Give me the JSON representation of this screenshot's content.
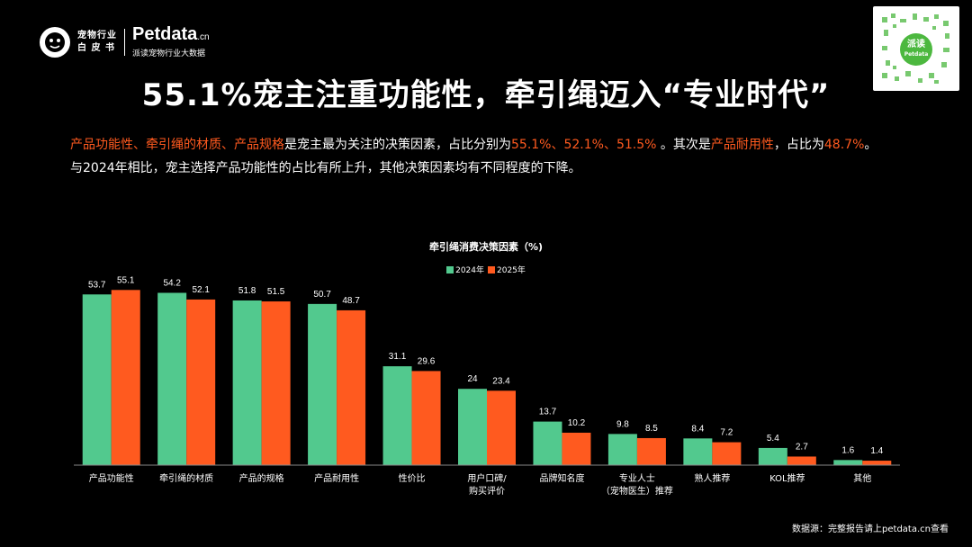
{
  "header": {
    "logo_line1": "宠物行业",
    "logo_line2": "白 皮 书",
    "brand_name": "Petdata",
    "brand_suffix": ".cn",
    "brand_sub": "派读宠物行业大数据",
    "qr_label": "派读",
    "qr_sub": "Petdata"
  },
  "title": "55.1%宠主注重功能性，牵引绳迈入“专业时代”",
  "description": {
    "p1_hl1": "产品功能性、牵引绳的材质、产品规格",
    "p1_t1": "是宠主最为关注的决策因素，占比分别为",
    "p1_hl2": "55.1%、52.1%、51.5%",
    "p1_t2": " 。其次是",
    "p1_hl3": "产品耐用性",
    "p1_t3": "，占比为",
    "p1_hl4": "48.7%",
    "p1_t4": "。",
    "p2": "与2024年相比，宠主选择产品功能性的占比有所上升，其他决策因素均有不同程度的下降。"
  },
  "chart_data": {
    "type": "bar",
    "title": "牵引绳消费决策因素（%)",
    "categories": [
      "产品功能性",
      "牵引绳的材质",
      "产品的规格",
      "产品耐用性",
      "性价比",
      "用户口碑/\n购买评价",
      "品牌知名度",
      "专业人士\n（宠物医生）推荐",
      "熟人推荐",
      "KOL推荐",
      "其他"
    ],
    "series": [
      {
        "name": "2024年",
        "color": "#52c98e",
        "values": [
          53.7,
          54.2,
          51.8,
          50.7,
          31.1,
          24,
          13.7,
          9.8,
          8.4,
          5.4,
          1.6
        ]
      },
      {
        "name": "2025年",
        "color": "#ff5a1f",
        "values": [
          55.1,
          52.1,
          51.5,
          48.7,
          29.6,
          23.4,
          10.2,
          8.5,
          7.2,
          2.7,
          1.4
        ]
      }
    ],
    "value_labels": [
      [
        "53.7",
        "54.2",
        "51.8",
        "50.7",
        "31.1",
        "24",
        "13.7",
        "9.8",
        "8.4",
        "5.4",
        "1.6"
      ],
      [
        "55.1",
        "52.1",
        "51.5",
        "48.7",
        "29.6",
        "23.4",
        "10.2",
        "8.5",
        "7.2",
        "2.7",
        "1.4"
      ]
    ],
    "ylim": [
      0,
      60
    ],
    "grid": false,
    "legend_position": "top-center",
    "text_color": "#ffffff",
    "axis_color": "#888888"
  },
  "source": "数据源：完整报告请上petdata.cn查看"
}
